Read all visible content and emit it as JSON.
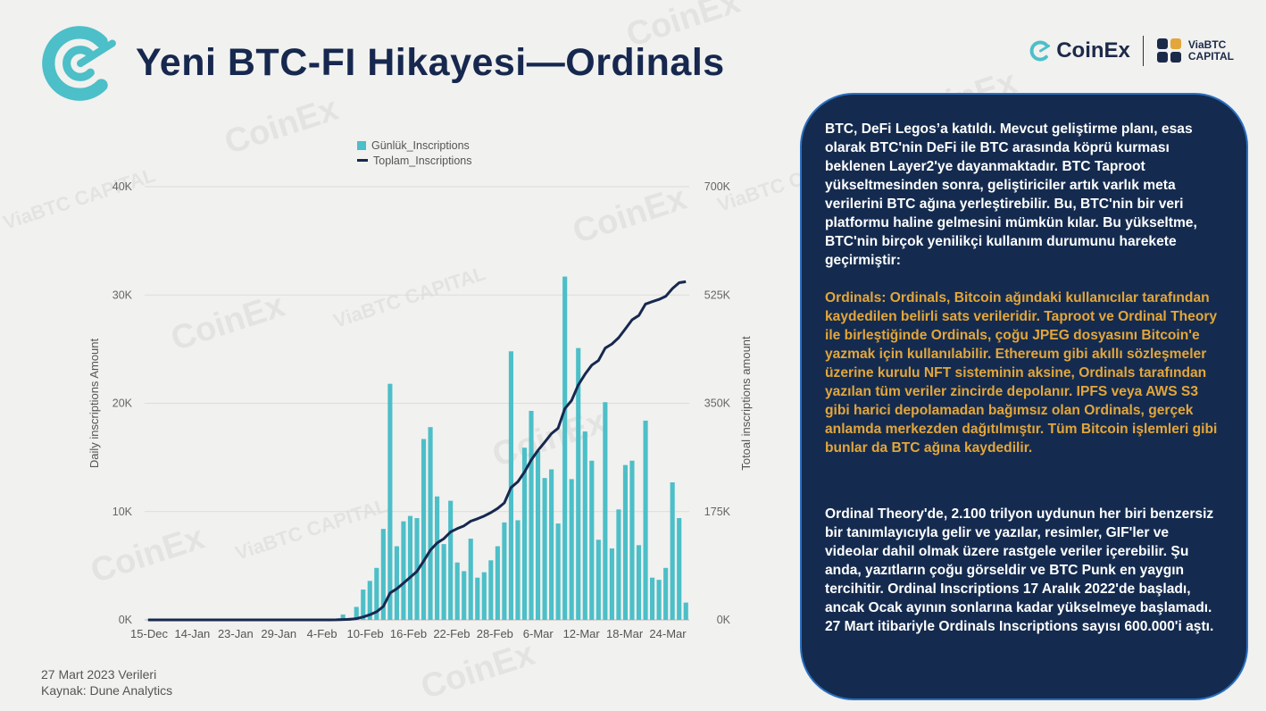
{
  "slide": {
    "title": "Yeni BTC-FI Hikayesi—Ordinals",
    "brand_coinex": "CoinEx",
    "brand_via_line1": "ViaBTC",
    "brand_via_line2": "CAPITAL",
    "watermark_text": "CoinEx",
    "watermark_via": "ViaBTC CAPITAL"
  },
  "panel": {
    "p1": "BTC, DeFi Legos’a katıldı. Mevcut geliştirme planı, esas olarak BTC'nin DeFi ile BTC arasında köprü kurması beklenen Layer2'ye dayanmaktadır. BTC Taproot yükseltmesinden sonra, geliştiriciler artık varlık meta verilerini BTC ağına yerleştirebilir. Bu, BTC'nin bir veri platformu haline gelmesini mümkün kılar. Bu yükseltme, BTC'nin birçok yenilikçi kullanım durumunu harekete geçirmiştir:",
    "p2": "Ordinals: Ordinals, Bitcoin ağındaki kullanıcılar tarafından kaydedilen belirli sats verileridir. Taproot ve Ordinal Theory ile birleştiğinde Ordinals, çoğu JPEG dosyasını Bitcoin'e yazmak için kullanılabilir. Ethereum gibi akıllı sözleşmeler üzerine kurulu NFT sisteminin aksine, Ordinals tarafından yazılan tüm veriler zincirde depolanır. IPFS veya AWS S3 gibi harici depolamadan bağımsız olan Ordinals, gerçek anlamda merkezden dağıtılmıştır. Tüm Bitcoin işlemleri gibi bunlar da BTC ağına kaydedilir.",
    "p3": "Ordinal Theory'de, 2.100 trilyon uydunun her biri benzersiz bir tanımlayıcıyla gelir ve yazılar, resimler, GIF'ler ve videolar dahil olmak üzere rastgele veriler içerebilir. Şu anda, yazıtların çoğu görseldir ve BTC Punk en yaygın tercihitir. Ordinal Inscriptions 17 Aralık 2022'de başladı, ancak Ocak ayının sonlarına kadar yükselmeye başlamadı. 27 Mart itibariyle Ordinals Inscriptions sayısı 600.000'i aştı."
  },
  "footer": {
    "line1": "27 Mart 2023 Verileri",
    "line2": "Kaynak: Dune Analytics"
  },
  "colors": {
    "bar": "#4cbfc8",
    "line": "#17284f",
    "panel_bg": "#142b4f",
    "highlight": "#e3a63a",
    "title": "#17284f"
  },
  "chart_data": {
    "type": "bar",
    "title": "",
    "legend_position": "top-center",
    "grid": true,
    "ylabel": "Daily inscriptions Amount",
    "y2label": "Totoal inscriptions amount",
    "ylim": [
      0,
      40000
    ],
    "y2lim": [
      0,
      700000
    ],
    "yticks": [
      "0K",
      "10K",
      "20K",
      "30K",
      "40K"
    ],
    "y2ticks": [
      "0K",
      "175K",
      "350K",
      "525K",
      "700K"
    ],
    "xticks": [
      "15-Dec",
      "14-Jan",
      "23-Jan",
      "29-Jan",
      "4-Feb",
      "10-Feb",
      "16-Feb",
      "22-Feb",
      "28-Feb",
      "6-Mar",
      "12-Mar",
      "18-Mar",
      "24-Mar"
    ],
    "series": [
      {
        "name": "Günlük_Inscriptions",
        "kind": "bar",
        "axis": "left",
        "values": [
          0,
          0,
          0,
          0,
          0,
          0,
          0,
          0,
          0,
          0,
          0,
          0,
          0,
          0,
          0,
          0,
          0,
          0,
          0,
          0,
          0,
          0,
          0,
          0,
          0,
          0,
          0,
          0,
          100,
          500,
          200,
          1200,
          2800,
          3600,
          4800,
          8400,
          21800,
          6800,
          9100,
          9600,
          9400,
          16700,
          17800,
          11400,
          7000,
          11000,
          5300,
          4500,
          7500,
          3900,
          4400,
          5500,
          6800,
          9000,
          24800,
          9200,
          15900,
          19300,
          15600,
          13100,
          13900,
          8900,
          31700,
          13000,
          25100,
          17400,
          14700,
          7400,
          20100,
          6600,
          10200,
          14300,
          14700,
          6900,
          18400,
          3900,
          3700,
          4800,
          12700,
          9400,
          1600
        ],
        "approximate": true
      },
      {
        "name": "Toplam_Inscriptions",
        "kind": "line",
        "axis": "right",
        "values": [
          0,
          0,
          0,
          0,
          0,
          0,
          0,
          0,
          0,
          0,
          0,
          0,
          0,
          0,
          0,
          0,
          0,
          0,
          0,
          0,
          0,
          0,
          0,
          0,
          0,
          0,
          0,
          0,
          100,
          600,
          800,
          2000,
          4800,
          8400,
          13200,
          21600,
          43400,
          50200,
          59300,
          68900,
          78300,
          95000,
          112800,
          124200,
          131200,
          142200,
          147500,
          152000,
          159500,
          163400,
          167800,
          173300,
          180100,
          189100,
          213900,
          223100,
          239000,
          258300,
          273900,
          287000,
          300900,
          309800,
          341500,
          354500,
          379600,
          397000,
          411700,
          419100,
          439200,
          445800,
          456000,
          470300,
          485000,
          491900,
          510300,
          514200,
          517900,
          522700,
          535400,
          544800,
          546400
        ]
      }
    ]
  }
}
